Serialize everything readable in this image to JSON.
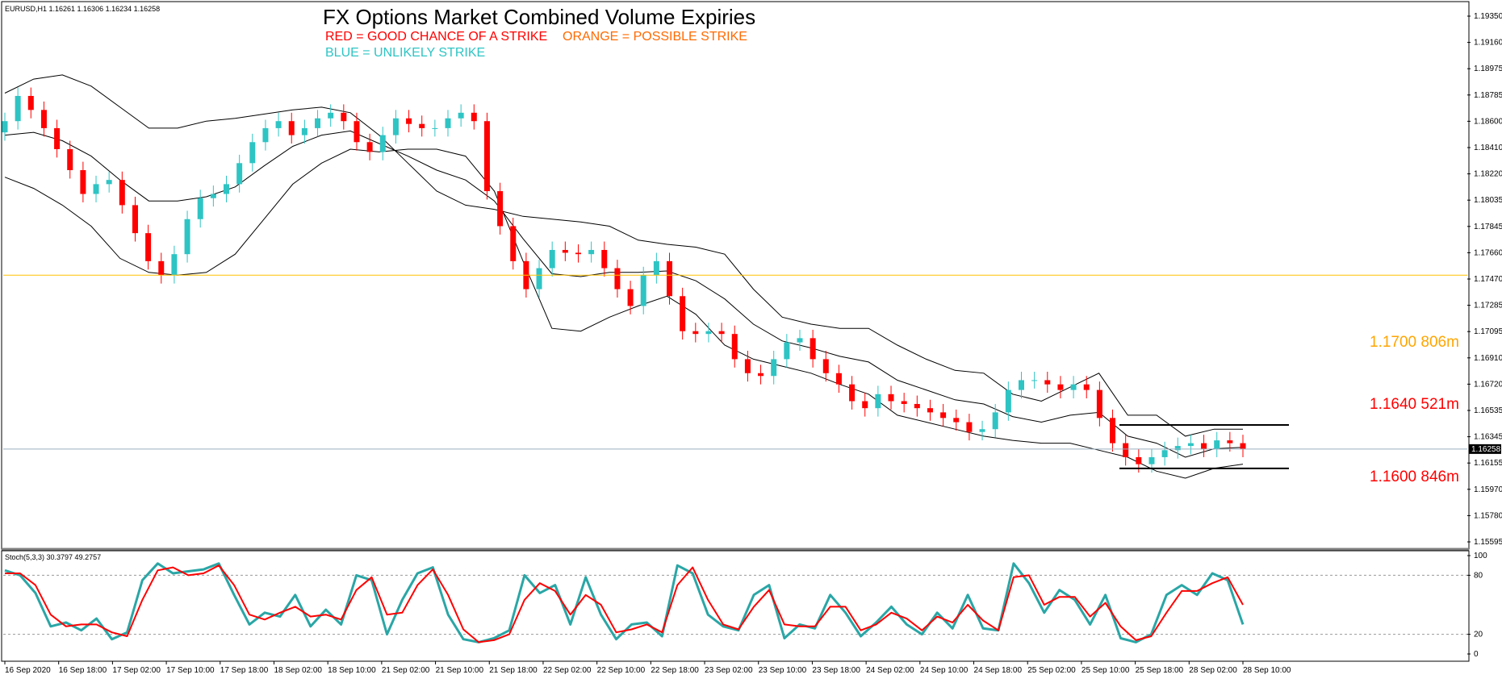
{
  "chart_data": [
    {
      "type": "candlestick",
      "title": "FX Options Market Combined Volume Expiries",
      "symbol_info": "EURUSD,H1  1.16261 1.16306 1.16234 1.16258",
      "legend": [
        {
          "text": "RED = GOOD CHANCE OF A STRIKE",
          "color": "#ff0000"
        },
        {
          "text": "ORANGE = POSSIBLE STRIKE",
          "color": "#ff6a00"
        },
        {
          "text": "BLUE = UNLIKELY STRIKE",
          "color": "#2ec4c4"
        }
      ],
      "y_ticks": [
        "1.19350",
        "1.19160",
        "1.18975",
        "1.18785",
        "1.18600",
        "1.18410",
        "1.18220",
        "1.18035",
        "1.17845",
        "1.17660",
        "1.17470",
        "1.17285",
        "1.17095",
        "1.16910",
        "1.16720",
        "1.16535",
        "1.16345",
        "1.16155",
        "1.15970",
        "1.15780",
        "1.15595"
      ],
      "ylim": [
        1.15595,
        1.1935
      ],
      "current_price": "1.16258",
      "strike_annotations": [
        {
          "text": "1.1700 806m",
          "color": "#ffa500"
        },
        {
          "text": "1.1640 521m",
          "color": "#ff0000"
        },
        {
          "text": "1.1600 846m",
          "color": "#ff0000"
        }
      ],
      "reference_lines": [
        {
          "price": 1.175,
          "color": "#ffc000",
          "label": "horizontal level"
        },
        {
          "price": 1.16258,
          "color": "#9aaebf",
          "label": "current price"
        }
      ],
      "range_box": {
        "high": 1.1643,
        "low": 1.1612,
        "color": "#000000"
      },
      "x_labels": [
        "16 Sep 2020",
        "16 Sep 18:00",
        "17 Sep 02:00",
        "17 Sep 10:00",
        "17 Sep 18:00",
        "18 Sep 02:00",
        "18 Sep 10:00",
        "21 Sep 02:00",
        "21 Sep 10:00",
        "21 Sep 18:00",
        "22 Sep 02:00",
        "22 Sep 10:00",
        "22 Sep 18:00",
        "23 Sep 02:00",
        "23 Sep 10:00",
        "23 Sep 18:00",
        "24 Sep 02:00",
        "24 Sep 10:00",
        "24 Sep 18:00",
        "25 Sep 02:00",
        "25 Sep 10:00",
        "25 Sep 18:00",
        "28 Sep 02:00",
        "28 Sep 10:00"
      ],
      "close_path": [
        1.186,
        1.1878,
        1.1868,
        1.1855,
        1.184,
        1.1825,
        1.1808,
        1.1815,
        1.1818,
        1.18,
        1.178,
        1.176,
        1.175,
        1.1765,
        1.179,
        1.1805,
        1.1808,
        1.1815,
        1.183,
        1.1845,
        1.1855,
        1.186,
        1.185,
        1.1855,
        1.1862,
        1.1866,
        1.186,
        1.1845,
        1.1838,
        1.185,
        1.1862,
        1.1858,
        1.1855,
        1.1855,
        1.1862,
        1.1866,
        1.186,
        1.181,
        1.1785,
        1.176,
        1.174,
        1.1755,
        1.1768,
        1.1766,
        1.1765,
        1.1768,
        1.1755,
        1.174,
        1.1728,
        1.175,
        1.176,
        1.1735,
        1.171,
        1.1708,
        1.171,
        1.1708,
        1.169,
        1.168,
        1.1678,
        1.169,
        1.1702,
        1.1705,
        1.169,
        1.168,
        1.1672,
        1.166,
        1.1655,
        1.1665,
        1.166,
        1.1658,
        1.1655,
        1.1652,
        1.1648,
        1.1645,
        1.1638,
        1.164,
        1.1652,
        1.1668,
        1.1675,
        1.1675,
        1.1672,
        1.1668,
        1.1672,
        1.1668,
        1.1648,
        1.163,
        1.162,
        1.1615,
        1.162,
        1.1625,
        1.1628,
        1.163,
        1.1626,
        1.1632,
        1.163,
        1.1626
      ],
      "bb_upper": [
        1.188,
        1.189,
        1.1893,
        1.1885,
        1.187,
        1.1855,
        1.1855,
        1.186,
        1.1862,
        1.1865,
        1.1868,
        1.187,
        1.1866,
        1.185,
        1.183,
        1.181,
        1.18,
        1.1797,
        1.1792,
        1.179,
        1.1788,
        1.1785,
        1.1775,
        1.1772,
        1.177,
        1.1765,
        1.174,
        1.172,
        1.1715,
        1.1712,
        1.1712,
        1.17,
        1.169,
        1.1682,
        1.168,
        1.1665,
        1.166,
        1.167,
        1.168,
        1.165,
        1.165,
        1.1635,
        1.164,
        1.164
      ],
      "bb_lower": [
        1.182,
        1.1812,
        1.18,
        1.1785,
        1.1762,
        1.1752,
        1.175,
        1.1752,
        1.1765,
        1.179,
        1.1815,
        1.183,
        1.184,
        1.1838,
        1.184,
        1.184,
        1.1835,
        1.181,
        1.176,
        1.1712,
        1.171,
        1.172,
        1.1728,
        1.1735,
        1.1722,
        1.17,
        1.169,
        1.1685,
        1.168,
        1.1672,
        1.1665,
        1.165,
        1.1645,
        1.164,
        1.1635,
        1.1632,
        1.163,
        1.163,
        1.1625,
        1.162,
        1.161,
        1.1605,
        1.1612,
        1.1615
      ],
      "bb_mid": [
        1.185,
        1.1852,
        1.1846,
        1.1835,
        1.1818,
        1.1803,
        1.1803,
        1.1806,
        1.1813,
        1.1828,
        1.1842,
        1.185,
        1.1853,
        1.1844,
        1.1835,
        1.1825,
        1.1818,
        1.1803,
        1.1776,
        1.1751,
        1.1749,
        1.1752,
        1.1752,
        1.1753,
        1.1746,
        1.1733,
        1.1715,
        1.1703,
        1.1698,
        1.1692,
        1.1688,
        1.1675,
        1.1668,
        1.1661,
        1.1658,
        1.1649,
        1.1645,
        1.165,
        1.1652,
        1.1635,
        1.163,
        1.162,
        1.1626,
        1.1627
      ]
    },
    {
      "type": "line",
      "title": "Stoch(5,3,3) 30.3797 49.2757",
      "y_ticks": [
        "100",
        "80",
        "20",
        "0"
      ],
      "ylim": [
        0,
        100
      ],
      "levels": [
        80,
        20
      ],
      "series": [
        {
          "name": "main",
          "color": "#2aa6a6",
          "values": [
            85,
            80,
            62,
            28,
            32,
            24,
            36,
            15,
            22,
            75,
            92,
            82,
            84,
            86,
            92,
            60,
            30,
            42,
            38,
            60,
            28,
            45,
            30,
            80,
            75,
            20,
            55,
            82,
            88,
            40,
            15,
            12,
            16,
            24,
            80,
            62,
            70,
            30,
            78,
            40,
            15,
            30,
            32,
            18,
            90,
            82,
            40,
            28,
            24,
            60,
            70,
            16,
            30,
            26,
            60,
            42,
            18,
            32,
            48,
            30,
            20,
            42,
            26,
            60,
            26,
            24,
            92,
            72,
            42,
            65,
            55,
            30,
            60,
            16,
            12,
            20,
            60,
            70,
            60,
            82,
            75,
            30
          ]
        },
        {
          "name": "signal",
          "color": "#ff0000",
          "values": [
            82,
            82,
            70,
            40,
            28,
            30,
            30,
            22,
            18,
            55,
            85,
            88,
            80,
            82,
            90,
            70,
            40,
            35,
            42,
            48,
            38,
            40,
            35,
            65,
            78,
            40,
            42,
            70,
            86,
            60,
            25,
            12,
            14,
            20,
            55,
            72,
            64,
            40,
            60,
            50,
            22,
            25,
            30,
            22,
            70,
            88,
            55,
            30,
            25,
            48,
            65,
            30,
            28,
            28,
            48,
            48,
            24,
            30,
            42,
            36,
            24,
            38,
            32,
            50,
            34,
            24,
            78,
            80,
            50,
            58,
            58,
            38,
            52,
            28,
            14,
            18,
            42,
            64,
            64,
            72,
            78,
            50
          ]
        }
      ]
    }
  ]
}
